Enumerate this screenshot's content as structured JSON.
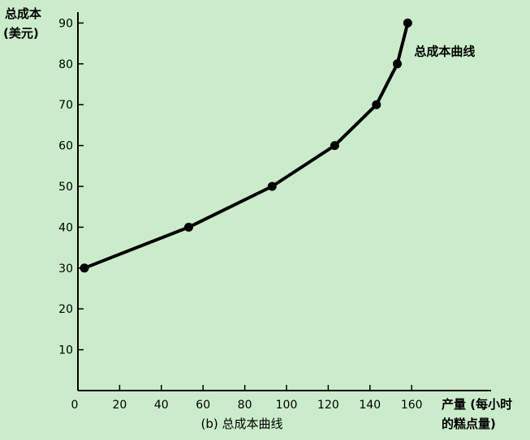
{
  "chart_data": {
    "type": "line",
    "title": "",
    "caption": "(b) 总成本曲线",
    "ylabel_line1": "总成本",
    "ylabel_line2": "(美元)",
    "xlabel_line1": "产量 (每小时",
    "xlabel_line2": "的糕点量)",
    "xlim": [
      0,
      180
    ],
    "ylim": [
      0,
      95
    ],
    "x_ticks": [
      0,
      20,
      40,
      60,
      80,
      100,
      120,
      140,
      160
    ],
    "y_ticks": [
      10,
      20,
      30,
      40,
      50,
      60,
      70,
      80,
      90
    ],
    "series": [
      {
        "name": "总成本曲线",
        "x": [
          0,
          50,
          90,
          120,
          140,
          150,
          155
        ],
        "y": [
          30,
          40,
          50,
          60,
          70,
          80,
          90
        ]
      }
    ],
    "grid": false,
    "legend": "none",
    "colors": {
      "background": "#cbeccb",
      "line": "#000000"
    }
  }
}
